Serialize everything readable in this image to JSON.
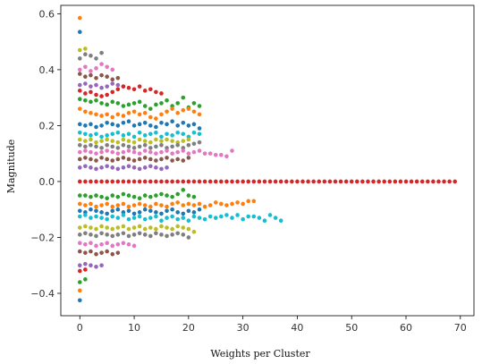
{
  "chart_data": {
    "type": "scatter",
    "title": "",
    "xlabel": "Weights per Cluster",
    "ylabel": "Magnitude",
    "xlim": [
      -3.5,
      72.5
    ],
    "ylim": [
      -0.48,
      0.63
    ],
    "xticks": [
      0,
      10,
      20,
      30,
      40,
      50,
      60,
      70
    ],
    "yticks": [
      -0.4,
      -0.2,
      0.0,
      0.2,
      0.4,
      0.6
    ],
    "ytick_labels": [
      "−0.4",
      "−0.2",
      "0.0",
      "0.2",
      "0.4",
      "0.6"
    ],
    "grid": false,
    "legend": "none",
    "series": [
      {
        "color": "#ff7f0e",
        "x": [
          0
        ],
        "y": [
          0.585
        ]
      },
      {
        "color": "#1f77b4",
        "x": [
          0
        ],
        "y": [
          0.535
        ]
      },
      {
        "color": "#bcbd22",
        "x": [
          0,
          1
        ],
        "y": [
          0.47,
          0.475
        ]
      },
      {
        "color": "#7f7f7f",
        "x": [
          0,
          1,
          2,
          3,
          4
        ],
        "y": [
          0.44,
          0.455,
          0.45,
          0.44,
          0.46
        ]
      },
      {
        "color": "#e377c2",
        "x": [
          0,
          1,
          2,
          3,
          4,
          5,
          6
        ],
        "y": [
          0.4,
          0.41,
          0.395,
          0.405,
          0.42,
          0.41,
          0.4
        ]
      },
      {
        "color": "#8c564b",
        "x": [
          0,
          1,
          2,
          3,
          4,
          5,
          6,
          7
        ],
        "y": [
          0.385,
          0.375,
          0.38,
          0.37,
          0.38,
          0.375,
          0.365,
          0.37
        ]
      },
      {
        "color": "#9467bd",
        "x": [
          0,
          1,
          2,
          3,
          4,
          5,
          6,
          7,
          8
        ],
        "y": [
          0.345,
          0.35,
          0.34,
          0.345,
          0.335,
          0.34,
          0.35,
          0.345,
          0.34
        ]
      },
      {
        "color": "#d62728",
        "x": [
          0,
          1,
          2,
          3,
          4,
          5,
          6,
          7,
          8,
          9,
          10,
          11,
          12,
          13,
          14,
          15
        ],
        "y": [
          0.325,
          0.315,
          0.32,
          0.31,
          0.305,
          0.31,
          0.32,
          0.33,
          0.34,
          0.335,
          0.33,
          0.34,
          0.325,
          0.33,
          0.32,
          0.315
        ]
      },
      {
        "color": "#2ca02c",
        "x": [
          0,
          1,
          2,
          3,
          4,
          5,
          6,
          7,
          8,
          9,
          10,
          11,
          12,
          13,
          14,
          15,
          16,
          17,
          18,
          19,
          20,
          21,
          22
        ],
        "y": [
          0.295,
          0.29,
          0.285,
          0.29,
          0.28,
          0.275,
          0.285,
          0.28,
          0.27,
          0.275,
          0.28,
          0.285,
          0.27,
          0.26,
          0.275,
          0.28,
          0.29,
          0.27,
          0.28,
          0.3,
          0.265,
          0.28,
          0.27
        ]
      },
      {
        "color": "#ff7f0e",
        "x": [
          0,
          1,
          2,
          3,
          4,
          5,
          6,
          7,
          8,
          9,
          10,
          11,
          12,
          13,
          14,
          15,
          16,
          17,
          18,
          19,
          20,
          21,
          22
        ],
        "y": [
          0.26,
          0.25,
          0.245,
          0.24,
          0.235,
          0.24,
          0.23,
          0.24,
          0.235,
          0.245,
          0.25,
          0.24,
          0.245,
          0.23,
          0.225,
          0.24,
          0.25,
          0.26,
          0.245,
          0.255,
          0.26,
          0.25,
          0.24
        ]
      },
      {
        "color": "#1f77b4",
        "x": [
          0,
          1,
          2,
          3,
          4,
          5,
          6,
          7,
          8,
          9,
          10,
          11,
          12,
          13,
          14,
          15,
          16,
          17,
          18,
          19,
          20,
          21,
          22
        ],
        "y": [
          0.205,
          0.2,
          0.205,
          0.195,
          0.2,
          0.21,
          0.205,
          0.2,
          0.21,
          0.215,
          0.2,
          0.205,
          0.21,
          0.2,
          0.195,
          0.21,
          0.205,
          0.215,
          0.2,
          0.21,
          0.2,
          0.205,
          0.19
        ]
      },
      {
        "color": "#17becf",
        "x": [
          0,
          1,
          2,
          3,
          4,
          5,
          6,
          7,
          8,
          9,
          10,
          11,
          12,
          13,
          14,
          15,
          16,
          17,
          18,
          19,
          20,
          21,
          22
        ],
        "y": [
          0.175,
          0.17,
          0.165,
          0.17,
          0.16,
          0.165,
          0.17,
          0.175,
          0.165,
          0.17,
          0.16,
          0.175,
          0.165,
          0.17,
          0.175,
          0.16,
          0.17,
          0.165,
          0.175,
          0.17,
          0.16,
          0.175,
          0.17
        ]
      },
      {
        "color": "#bcbd22",
        "x": [
          0,
          1,
          2,
          3,
          4,
          5,
          6,
          7,
          8,
          9,
          10,
          11,
          12,
          13,
          14,
          15,
          16,
          17,
          18,
          19,
          20
        ],
        "y": [
          0.15,
          0.145,
          0.15,
          0.14,
          0.145,
          0.15,
          0.145,
          0.14,
          0.15,
          0.145,
          0.14,
          0.15,
          0.145,
          0.14,
          0.15,
          0.145,
          0.15,
          0.145,
          0.14,
          0.145,
          0.15
        ]
      },
      {
        "color": "#7f7f7f",
        "x": [
          0,
          1,
          2,
          3,
          4,
          5,
          6,
          7,
          8,
          9,
          10,
          11,
          12,
          13,
          14,
          15,
          16,
          17,
          18,
          19,
          20,
          21,
          22
        ],
        "y": [
          0.13,
          0.125,
          0.13,
          0.125,
          0.12,
          0.13,
          0.125,
          0.12,
          0.13,
          0.125,
          0.12,
          0.125,
          0.13,
          0.12,
          0.125,
          0.13,
          0.12,
          0.125,
          0.13,
          0.12,
          0.13,
          0.135,
          0.14
        ]
      },
      {
        "color": "#e377c2",
        "x": [
          0,
          1,
          2,
          3,
          4,
          5,
          6,
          7,
          8,
          9,
          10,
          11,
          12,
          13,
          14,
          15,
          16,
          17,
          18,
          19,
          20,
          21,
          22,
          23,
          24,
          25,
          26,
          27,
          28
        ],
        "y": [
          0.105,
          0.11,
          0.105,
          0.1,
          0.105,
          0.11,
          0.105,
          0.1,
          0.105,
          0.11,
          0.105,
          0.1,
          0.11,
          0.105,
          0.1,
          0.105,
          0.11,
          0.1,
          0.105,
          0.11,
          0.1,
          0.105,
          0.11,
          0.1,
          0.1,
          0.095,
          0.095,
          0.09,
          0.11
        ]
      },
      {
        "color": "#8c564b",
        "x": [
          0,
          1,
          2,
          3,
          4,
          5,
          6,
          7,
          8,
          9,
          10,
          11,
          12,
          13,
          14,
          15,
          16,
          17,
          18,
          19,
          20
        ],
        "y": [
          0.08,
          0.085,
          0.08,
          0.075,
          0.085,
          0.08,
          0.075,
          0.08,
          0.085,
          0.08,
          0.075,
          0.08,
          0.085,
          0.08,
          0.075,
          0.08,
          0.085,
          0.075,
          0.08,
          0.075,
          0.085
        ]
      },
      {
        "color": "#9467bd",
        "x": [
          0,
          1,
          2,
          3,
          4,
          5,
          6,
          7,
          8,
          9,
          10,
          11,
          12,
          13,
          14,
          15,
          16
        ],
        "y": [
          0.05,
          0.055,
          0.05,
          0.045,
          0.05,
          0.055,
          0.05,
          0.045,
          0.05,
          0.055,
          0.05,
          0.045,
          0.05,
          0.055,
          0.05,
          0.045,
          0.05
        ]
      },
      {
        "color": "#d62728",
        "x": [
          0,
          1,
          2,
          3,
          4,
          5,
          6,
          7,
          8,
          9,
          10,
          11,
          12,
          13,
          14,
          15,
          16,
          17,
          18,
          19,
          20,
          21,
          22,
          23,
          24,
          25,
          26,
          27,
          28,
          29,
          30,
          31,
          32,
          33,
          34,
          35,
          36,
          37,
          38,
          39,
          40,
          41,
          42,
          43,
          44,
          45,
          46,
          47,
          48,
          49,
          50,
          51,
          52,
          53,
          54,
          55,
          56,
          57,
          58,
          59,
          60,
          61,
          62,
          63,
          64,
          65,
          66,
          67,
          68,
          69
        ],
        "y": [
          0,
          0,
          0,
          0,
          0,
          0,
          0,
          0,
          0,
          0,
          0,
          0,
          0,
          0,
          0,
          0,
          0,
          0,
          0,
          0,
          0,
          0,
          0,
          0,
          0,
          0,
          0,
          0,
          0,
          0,
          0,
          0,
          0,
          0,
          0,
          0,
          0,
          0,
          0,
          0,
          0,
          0,
          0,
          0,
          0,
          0,
          0,
          0,
          0,
          0,
          0,
          0,
          0,
          0,
          0,
          0,
          0,
          0,
          0,
          0,
          0,
          0,
          0,
          0,
          0,
          0,
          0,
          0,
          0,
          0
        ]
      },
      {
        "color": "#2ca02c",
        "x": [
          0,
          1,
          2,
          3,
          4,
          5,
          6,
          7,
          8,
          9,
          10,
          11,
          12,
          13,
          14,
          15,
          16,
          17,
          18,
          19,
          20,
          21
        ],
        "y": [
          -0.05,
          -0.05,
          -0.055,
          -0.05,
          -0.055,
          -0.06,
          -0.05,
          -0.055,
          -0.045,
          -0.05,
          -0.055,
          -0.06,
          -0.05,
          -0.055,
          -0.05,
          -0.045,
          -0.05,
          -0.055,
          -0.045,
          -0.03,
          -0.05,
          -0.055
        ]
      },
      {
        "color": "#ff7f0e",
        "x": [
          0,
          1,
          2,
          3,
          4,
          5,
          6,
          7,
          8,
          9,
          10,
          11,
          12,
          13,
          14,
          15,
          16,
          17,
          18,
          19,
          20,
          21,
          22,
          23,
          24,
          25,
          26,
          27,
          28,
          29,
          30,
          31,
          32
        ],
        "y": [
          -0.08,
          -0.085,
          -0.08,
          -0.09,
          -0.085,
          -0.08,
          -0.09,
          -0.085,
          -0.08,
          -0.09,
          -0.085,
          -0.08,
          -0.085,
          -0.09,
          -0.08,
          -0.085,
          -0.09,
          -0.08,
          -0.075,
          -0.085,
          -0.08,
          -0.085,
          -0.08,
          -0.09,
          -0.085,
          -0.075,
          -0.08,
          -0.085,
          -0.08,
          -0.075,
          -0.08,
          -0.07,
          -0.07
        ]
      },
      {
        "color": "#1f77b4",
        "x": [
          0,
          1,
          2,
          3,
          4,
          5,
          6,
          7,
          8,
          9,
          10,
          11,
          12,
          13,
          14,
          15,
          16,
          17,
          18,
          19,
          20,
          21,
          22
        ],
        "y": [
          -0.105,
          -0.11,
          -0.1,
          -0.105,
          -0.11,
          -0.115,
          -0.105,
          -0.1,
          -0.11,
          -0.105,
          -0.115,
          -0.11,
          -0.1,
          -0.105,
          -0.11,
          -0.115,
          -0.105,
          -0.1,
          -0.11,
          -0.115,
          -0.105,
          -0.11,
          -0.1
        ]
      },
      {
        "color": "#17becf",
        "x": [
          0,
          1,
          2,
          3,
          4,
          5,
          6,
          7,
          8,
          9,
          10,
          11,
          12,
          13,
          14,
          15,
          16,
          17,
          18,
          19,
          20,
          21,
          22,
          23,
          24,
          25,
          26,
          27,
          28,
          29,
          30,
          31,
          32,
          33,
          34,
          35,
          36,
          37
        ],
        "y": [
          -0.125,
          -0.12,
          -0.13,
          -0.125,
          -0.13,
          -0.135,
          -0.125,
          -0.13,
          -0.12,
          -0.135,
          -0.13,
          -0.125,
          -0.135,
          -0.13,
          -0.125,
          -0.14,
          -0.13,
          -0.125,
          -0.135,
          -0.13,
          -0.14,
          -0.125,
          -0.13,
          -0.135,
          -0.125,
          -0.13,
          -0.125,
          -0.12,
          -0.13,
          -0.12,
          -0.135,
          -0.125,
          -0.125,
          -0.13,
          -0.14,
          -0.12,
          -0.13,
          -0.14
        ]
      },
      {
        "color": "#bcbd22",
        "x": [
          0,
          1,
          2,
          3,
          4,
          5,
          6,
          7,
          8,
          9,
          10,
          11,
          12,
          13,
          14,
          15,
          16,
          17,
          18,
          19,
          20,
          21
        ],
        "y": [
          -0.165,
          -0.16,
          -0.165,
          -0.17,
          -0.16,
          -0.165,
          -0.17,
          -0.165,
          -0.16,
          -0.17,
          -0.165,
          -0.16,
          -0.17,
          -0.165,
          -0.17,
          -0.16,
          -0.165,
          -0.17,
          -0.16,
          -0.165,
          -0.17,
          -0.18
        ]
      },
      {
        "color": "#7f7f7f",
        "x": [
          0,
          1,
          2,
          3,
          4,
          5,
          6,
          7,
          8,
          9,
          10,
          11,
          12,
          13,
          14,
          15,
          16,
          17,
          18,
          19,
          20
        ],
        "y": [
          -0.19,
          -0.185,
          -0.19,
          -0.195,
          -0.185,
          -0.19,
          -0.195,
          -0.19,
          -0.185,
          -0.195,
          -0.19,
          -0.185,
          -0.19,
          -0.195,
          -0.185,
          -0.19,
          -0.195,
          -0.19,
          -0.185,
          -0.19,
          -0.2
        ]
      },
      {
        "color": "#e377c2",
        "x": [
          0,
          1,
          2,
          3,
          4,
          5,
          6,
          7,
          8,
          9,
          10
        ],
        "y": [
          -0.22,
          -0.225,
          -0.22,
          -0.23,
          -0.225,
          -0.22,
          -0.23,
          -0.225,
          -0.22,
          -0.225,
          -0.23
        ]
      },
      {
        "color": "#8c564b",
        "x": [
          0,
          1,
          2,
          3,
          4,
          5,
          6,
          7
        ],
        "y": [
          -0.25,
          -0.255,
          -0.25,
          -0.26,
          -0.255,
          -0.25,
          -0.26,
          -0.255
        ]
      },
      {
        "color": "#9467bd",
        "x": [
          0,
          1,
          2,
          3,
          4
        ],
        "y": [
          -0.3,
          -0.295,
          -0.3,
          -0.305,
          -0.3
        ]
      },
      {
        "color": "#d62728",
        "x": [
          0,
          1
        ],
        "y": [
          -0.32,
          -0.315
        ]
      },
      {
        "color": "#2ca02c",
        "x": [
          0,
          1
        ],
        "y": [
          -0.36,
          -0.35
        ]
      },
      {
        "color": "#ff7f0e",
        "x": [
          0
        ],
        "y": [
          -0.39
        ]
      },
      {
        "color": "#1f77b4",
        "x": [
          0
        ],
        "y": [
          -0.425
        ]
      }
    ]
  }
}
